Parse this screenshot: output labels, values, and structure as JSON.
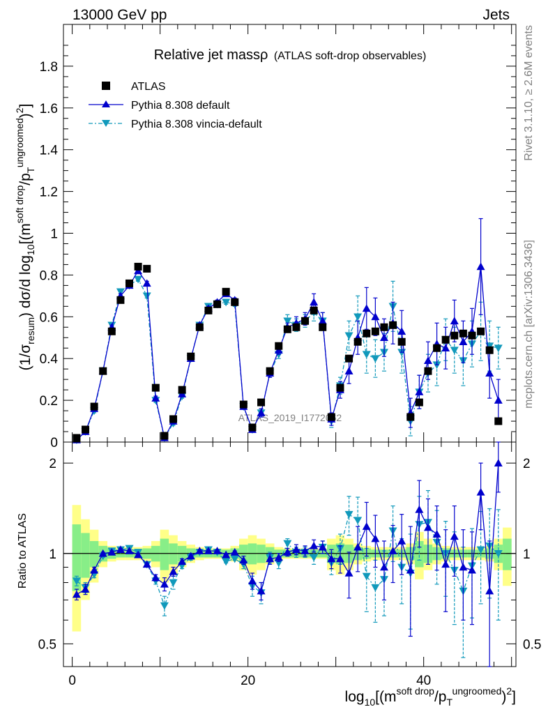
{
  "header": {
    "energy": "13000 GeV pp",
    "process": "Jets"
  },
  "watermarks": {
    "rivet": "Rivet 3.1.10, ≥ 2.6M events",
    "mcplots": "mcplots.cern.ch [arXiv:1306.3436]",
    "analysis": "ATLAS_2019_I1772062"
  },
  "colors": {
    "atlas": "#000000",
    "default": "#0000cc",
    "vincia": "#1199bb",
    "band_yellow": "#ffff88",
    "band_green": "#88ee88"
  },
  "chart_data": [
    {
      "type": "scatter",
      "title_main": "Relative jet massρ",
      "title_sub": "(ATLAS soft-drop observables)",
      "ylabel_main": "(1/σ",
      "ylabel_sub1": "resum",
      "ylabel_mid": ") dσ/d log",
      "ylabel_sub2": "10",
      "ylabel_tail": "[(m",
      "ylabel_sup1": "soft drop",
      "ylabel_tail2": "/p",
      "ylabel_sub3": "T",
      "ylabel_sup2": "ungroomed",
      "ylabel_tail3": ")",
      "ylabel_sup3": "2",
      "ylabel_end": "]",
      "xlim": [
        -1,
        50.5
      ],
      "ylim": [
        0,
        2.0
      ],
      "yticks": [
        "0",
        "0.2",
        "0.4",
        "0.6",
        "0.8",
        "1",
        "1.2",
        "1.4",
        "1.6",
        "1.8"
      ],
      "legend": [
        "ATLAS",
        "Pythia 8.308 default",
        "Pythia 8.308 vincia-default"
      ],
      "legend_position": "top-left",
      "x": [
        0.5,
        1.5,
        2.5,
        3.5,
        4.5,
        5.5,
        6.5,
        7.5,
        8.5,
        9.5,
        10.5,
        11.5,
        12.5,
        13.5,
        14.5,
        15.5,
        16.5,
        17.5,
        18.5,
        19.5,
        20.5,
        21.5,
        22.5,
        23.5,
        24.5,
        25.5,
        26.5,
        27.5,
        28.5,
        29.5,
        30.5,
        31.5,
        32.5,
        33.5,
        34.5,
        35.5,
        36.5,
        37.5,
        38.5,
        39.5,
        40.5,
        41.5,
        42.5,
        43.5,
        44.5,
        45.5,
        46.5,
        47.5,
        48.5,
        49.5
      ],
      "series": [
        {
          "name": "ATLAS",
          "values": [
            0.02,
            0.06,
            0.17,
            0.34,
            0.53,
            0.68,
            0.76,
            0.84,
            0.83,
            0.26,
            0.03,
            0.11,
            0.25,
            0.41,
            0.55,
            0.63,
            0.66,
            0.72,
            0.67,
            0.18,
            0.07,
            0.19,
            0.34,
            0.46,
            0.54,
            0.55,
            0.58,
            0.63,
            0.55,
            0.12,
            0.26,
            0.4,
            0.48,
            0.52,
            0.53,
            0.55,
            0.56,
            0.48,
            0.12,
            0.19,
            0.34,
            0.45,
            0.49,
            0.51,
            0.52,
            0.51,
            0.53,
            0.44,
            0.1,
            null
          ],
          "errors": [
            0,
            0,
            0,
            0,
            0,
            0,
            0,
            0,
            0,
            0,
            0,
            0,
            0,
            0,
            0,
            0,
            0,
            0,
            0,
            0,
            0,
            0,
            0,
            0,
            0,
            0,
            0,
            0,
            0,
            0,
            0,
            0,
            0,
            0,
            0,
            0,
            0,
            0,
            0,
            0,
            0,
            0,
            0,
            0,
            0,
            0,
            0,
            0,
            0,
            0
          ]
        },
        {
          "name": "Pythia 8.308 default",
          "values": [
            0.01,
            0.05,
            0.16,
            0.34,
            0.55,
            0.7,
            0.75,
            0.82,
            0.76,
            0.21,
            0.02,
            0.1,
            0.23,
            0.4,
            0.56,
            0.64,
            0.67,
            0.71,
            0.68,
            0.17,
            0.06,
            0.14,
            0.33,
            0.44,
            0.55,
            0.57,
            0.59,
            0.67,
            0.58,
            0.11,
            0.25,
            0.34,
            0.5,
            0.64,
            0.6,
            0.5,
            0.57,
            0.53,
            0.14,
            0.24,
            0.39,
            0.47,
            0.45,
            0.58,
            0.48,
            0.53,
            0.84,
            0.33,
            0.2,
            null
          ],
          "errors": [
            0.005,
            0.005,
            0.01,
            0.01,
            0.01,
            0.01,
            0.01,
            0.01,
            0.01,
            0.01,
            0.005,
            0.01,
            0.01,
            0.01,
            0.01,
            0.01,
            0.01,
            0.01,
            0.01,
            0.01,
            0.01,
            0.02,
            0.02,
            0.02,
            0.02,
            0.03,
            0.03,
            0.04,
            0.04,
            0.03,
            0.04,
            0.06,
            0.08,
            0.1,
            0.09,
            0.09,
            0.1,
            0.1,
            0.07,
            0.08,
            0.09,
            0.1,
            0.1,
            0.1,
            0.1,
            0.11,
            0.23,
            0.12,
            0.1,
            0
          ]
        },
        {
          "name": "Pythia 8.308 vincia-default",
          "values": [
            0.01,
            0.05,
            0.15,
            0.34,
            0.56,
            0.72,
            0.75,
            0.78,
            0.7,
            0.2,
            0.02,
            0.09,
            0.22,
            0.4,
            0.56,
            0.65,
            0.66,
            0.67,
            0.66,
            0.17,
            0.06,
            0.14,
            0.33,
            0.42,
            0.58,
            0.56,
            0.58,
            0.62,
            0.58,
            0.1,
            0.27,
            0.51,
            0.6,
            0.42,
            0.4,
            0.43,
            0.65,
            0.43,
            0.1,
            0.24,
            0.33,
            0.37,
            0.49,
            0.44,
            0.39,
            0.47,
            0.53,
            0.46,
            0.45,
            null
          ],
          "errors": [
            0.005,
            0.005,
            0.01,
            0.01,
            0.01,
            0.01,
            0.01,
            0.01,
            0.01,
            0.01,
            0.005,
            0.01,
            0.01,
            0.01,
            0.01,
            0.01,
            0.01,
            0.01,
            0.01,
            0.01,
            0.01,
            0.02,
            0.02,
            0.02,
            0.03,
            0.03,
            0.03,
            0.04,
            0.04,
            0.03,
            0.04,
            0.07,
            0.1,
            0.09,
            0.09,
            0.09,
            0.12,
            0.1,
            0.07,
            0.08,
            0.09,
            0.1,
            0.1,
            0.11,
            0.12,
            0.11,
            0.14,
            0.12,
            0.1,
            0
          ]
        }
      ]
    },
    {
      "type": "scatter",
      "ylabel": "Ratio to ATLAS",
      "xlabel_main": "log",
      "xlabel_sub1": "10",
      "xlabel_tail": "[(m",
      "xlabel_sup1": "soft drop",
      "xlabel_tail2": "/p",
      "xlabel_sub2": "T",
      "xlabel_sup2": "ungroomed",
      "xlabel_tail3": ")",
      "xlabel_sup3": "2",
      "xlabel_end": "]",
      "xlim": [
        -1,
        50.5
      ],
      "ylim": [
        0.42,
        2.35
      ],
      "ylog": true,
      "yticks": [
        "0.5",
        "1",
        "2"
      ],
      "xticks": [
        "0",
        "20",
        "40"
      ],
      "x": [
        0.5,
        1.5,
        2.5,
        3.5,
        4.5,
        5.5,
        6.5,
        7.5,
        8.5,
        9.5,
        10.5,
        11.5,
        12.5,
        13.5,
        14.5,
        15.5,
        16.5,
        17.5,
        18.5,
        19.5,
        20.5,
        21.5,
        22.5,
        23.5,
        24.5,
        25.5,
        26.5,
        27.5,
        28.5,
        29.5,
        30.5,
        31.5,
        32.5,
        33.5,
        34.5,
        35.5,
        36.5,
        37.5,
        38.5,
        39.5,
        40.5,
        41.5,
        42.5,
        43.5,
        44.5,
        45.5,
        46.5,
        47.5,
        48.5,
        49.5
      ],
      "band_yellow_half_widths": [
        0.45,
        0.3,
        0.2,
        0.1,
        0.06,
        0.05,
        0.05,
        0.05,
        0.06,
        0.1,
        0.2,
        0.15,
        0.1,
        0.07,
        0.05,
        0.04,
        0.04,
        0.04,
        0.06,
        0.12,
        0.15,
        0.12,
        0.08,
        0.05,
        0.04,
        0.04,
        0.04,
        0.04,
        0.04,
        0.12,
        0.15,
        0.12,
        0.08,
        0.06,
        0.05,
        0.05,
        0.05,
        0.05,
        0.08,
        0.18,
        0.12,
        0.08,
        0.06,
        0.05,
        0.05,
        0.05,
        0.05,
        0.06,
        0.12,
        0.22
      ],
      "band_green_half_widths": [
        0.25,
        0.17,
        0.1,
        0.06,
        0.04,
        0.03,
        0.03,
        0.03,
        0.04,
        0.06,
        0.12,
        0.08,
        0.06,
        0.04,
        0.03,
        0.03,
        0.03,
        0.03,
        0.04,
        0.07,
        0.08,
        0.07,
        0.05,
        0.03,
        0.03,
        0.03,
        0.03,
        0.03,
        0.03,
        0.07,
        0.08,
        0.07,
        0.05,
        0.04,
        0.03,
        0.03,
        0.03,
        0.03,
        0.05,
        0.1,
        0.07,
        0.05,
        0.04,
        0.03,
        0.03,
        0.03,
        0.03,
        0.04,
        0.07,
        0.12
      ],
      "series": [
        {
          "name": "Pythia 8.308 default",
          "values": [
            0.73,
            0.76,
            0.88,
            1.0,
            1.01,
            1.03,
            1.02,
            0.99,
            0.92,
            0.83,
            0.79,
            0.87,
            0.94,
            0.98,
            1.02,
            1.02,
            1.02,
            0.99,
            1.01,
            0.95,
            0.81,
            0.75,
            0.96,
            0.97,
            1.01,
            1.03,
            1.02,
            1.06,
            1.05,
            0.96,
            0.96,
            0.86,
            1.05,
            1.23,
            1.12,
            0.9,
            1.02,
            1.1,
            0.88,
            1.4,
            1.22,
            1.16,
            0.92,
            1.14,
            0.9,
            0.88,
            1.6,
            0.75,
            2.0,
            null
          ],
          "errors": [
            0.03,
            0.03,
            0.02,
            0.01,
            0.01,
            0.01,
            0.01,
            0.01,
            0.01,
            0.02,
            0.04,
            0.03,
            0.02,
            0.02,
            0.01,
            0.01,
            0.01,
            0.01,
            0.01,
            0.03,
            0.05,
            0.05,
            0.04,
            0.03,
            0.03,
            0.04,
            0.04,
            0.05,
            0.05,
            0.07,
            0.1,
            0.15,
            0.18,
            0.25,
            0.22,
            0.2,
            0.22,
            0.25,
            0.35,
            0.35,
            0.3,
            0.28,
            0.28,
            0.3,
            0.3,
            0.3,
            0.4,
            0.35,
            0.4,
            0
          ]
        },
        {
          "name": "Pythia 8.308 vincia-default",
          "values": [
            0.81,
            0.77,
            0.85,
            0.98,
            1.02,
            1.03,
            1.04,
            1.01,
            0.92,
            0.81,
            0.67,
            0.8,
            0.91,
            0.97,
            1.01,
            1.03,
            1.01,
            0.94,
            0.96,
            0.92,
            0.78,
            0.74,
            0.97,
            0.93,
            1.08,
            1.01,
            1.01,
            0.97,
            1.05,
            0.93,
            1.04,
            1.35,
            1.29,
            0.84,
            0.77,
            0.82,
            1.19,
            0.9,
            0.86,
            1.25,
            1.27,
            1.09,
            1.0,
            0.88,
            0.75,
            0.91,
            1.03,
            1.06,
            1.0,
            null
          ],
          "errors": [
            0.03,
            0.03,
            0.02,
            0.01,
            0.01,
            0.01,
            0.01,
            0.01,
            0.01,
            0.02,
            0.05,
            0.04,
            0.02,
            0.02,
            0.01,
            0.01,
            0.01,
            0.01,
            0.01,
            0.03,
            0.06,
            0.06,
            0.04,
            0.04,
            0.04,
            0.04,
            0.04,
            0.05,
            0.05,
            0.08,
            0.12,
            0.2,
            0.25,
            0.2,
            0.18,
            0.2,
            0.25,
            0.22,
            0.3,
            0.3,
            0.35,
            0.3,
            0.28,
            0.3,
            0.3,
            0.3,
            0.35,
            0.35,
            0.4,
            0
          ]
        }
      ]
    }
  ]
}
